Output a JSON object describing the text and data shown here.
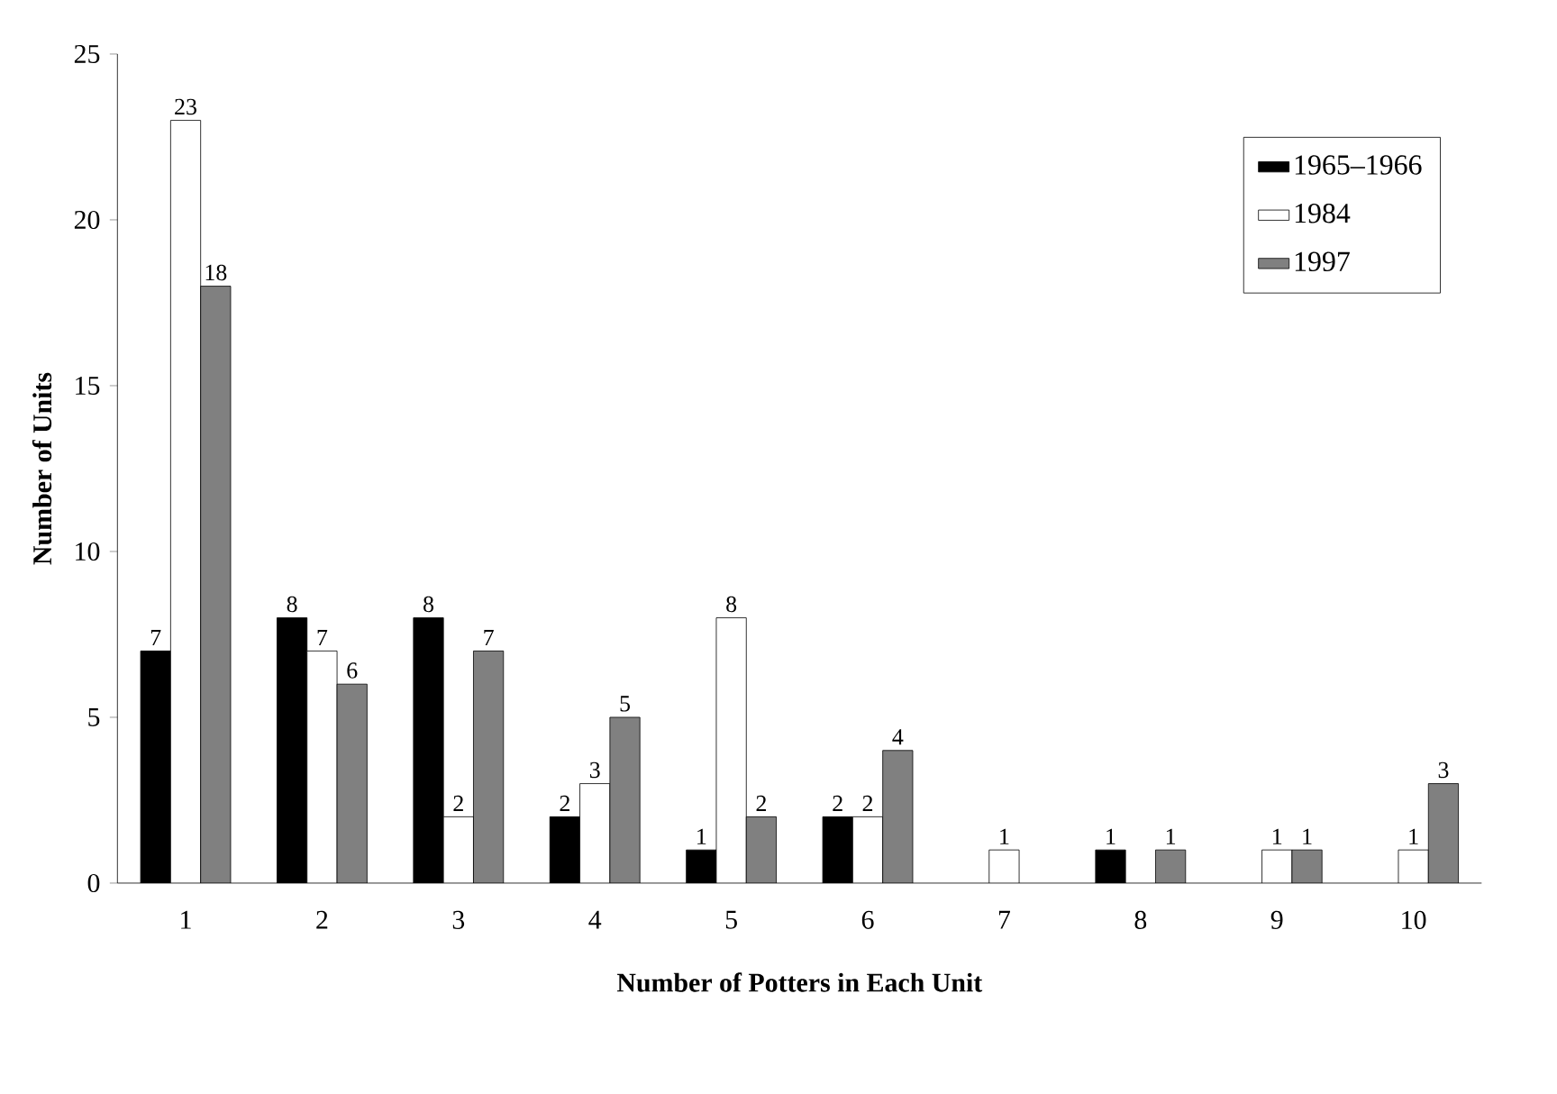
{
  "chart_data": {
    "type": "bar",
    "xlabel": "Number of Potters in Each Unit",
    "ylabel": "Number of Units",
    "categories": [
      "1",
      "2",
      "3",
      "4",
      "5",
      "6",
      "7",
      "8",
      "9",
      "10"
    ],
    "series": [
      {
        "name": "1965–1966",
        "color": "#000000",
        "values": [
          7,
          8,
          8,
          2,
          1,
          2,
          0,
          1,
          0,
          0
        ],
        "value_labels": [
          "7",
          "8",
          "8",
          "2",
          "1",
          "2",
          null,
          "1",
          null,
          null
        ]
      },
      {
        "name": "1984",
        "color": "#ffffff",
        "values": [
          23,
          7,
          2,
          3,
          8,
          2,
          1,
          0,
          1,
          1
        ],
        "value_labels": [
          "23",
          "7",
          "2",
          "3",
          "8",
          "2",
          "1",
          null,
          "1",
          "1"
        ]
      },
      {
        "name": "1997",
        "color": "#808080",
        "values": [
          18,
          6,
          7,
          5,
          2,
          4,
          0,
          1,
          1,
          3
        ],
        "value_labels": [
          "18",
          "6",
          "7",
          "5",
          "2",
          "4",
          null,
          "1",
          "1",
          "3"
        ]
      }
    ],
    "ylim": [
      0,
      25
    ],
    "yticks": [
      0,
      5,
      10,
      15,
      20,
      25
    ],
    "grid": false,
    "legend": "top right"
  }
}
